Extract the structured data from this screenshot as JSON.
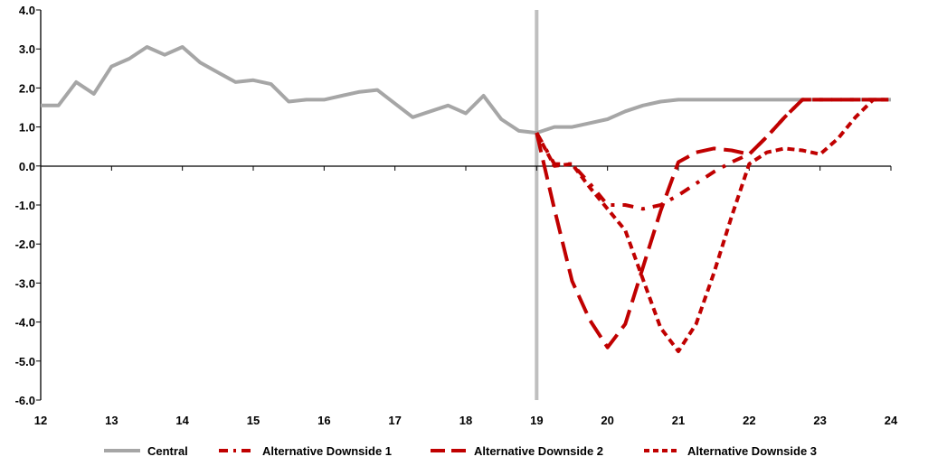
{
  "chart_data": {
    "type": "line",
    "x_ticks": [
      "12",
      "13",
      "14",
      "15",
      "16",
      "17",
      "18",
      "19",
      "20",
      "21",
      "22",
      "23",
      "24"
    ],
    "y_ticks": [
      "4.0",
      "3.0",
      "2.0",
      "1.0",
      "0.0",
      "-1.0",
      "-2.0",
      "-3.0",
      "-4.0",
      "-5.0",
      "-6.0"
    ],
    "xlim": [
      12,
      24
    ],
    "ylim": [
      -6,
      4
    ],
    "vertical_marker_x": 19,
    "colors": {
      "central": "#a6a6a6",
      "downside": "#c00000",
      "marker": "#bfbfbf",
      "axis": "#000000"
    },
    "series": [
      {
        "name": "Central",
        "style": "solid",
        "x": [
          12,
          12.25,
          12.5,
          12.75,
          13,
          13.25,
          13.5,
          13.75,
          14,
          14.25,
          14.5,
          14.75,
          15,
          15.25,
          15.5,
          15.75,
          16,
          16.25,
          16.5,
          16.75,
          17,
          17.25,
          17.5,
          17.75,
          18,
          18.25,
          18.5,
          18.75,
          19,
          19.25,
          19.5,
          19.75,
          20,
          20.25,
          20.5,
          20.75,
          21,
          21.25,
          21.5,
          21.75,
          22,
          22.25,
          22.5,
          22.75,
          23,
          23.25,
          23.5,
          23.75,
          24
        ],
        "y": [
          1.55,
          1.55,
          2.15,
          1.85,
          2.55,
          2.75,
          3.05,
          2.85,
          3.05,
          2.65,
          2.4,
          2.15,
          2.2,
          2.1,
          1.65,
          1.7,
          1.7,
          1.8,
          1.9,
          1.95,
          1.6,
          1.25,
          1.4,
          1.55,
          1.35,
          1.8,
          1.2,
          0.9,
          0.85,
          1.0,
          1.0,
          1.1,
          1.2,
          1.4,
          1.55,
          1.65,
          1.7,
          1.7,
          1.7,
          1.7,
          1.7,
          1.7,
          1.7,
          1.7,
          1.7,
          1.7,
          1.7,
          1.7,
          1.7
        ]
      },
      {
        "name": "Alternative Downside 1",
        "style": "dash-dot",
        "x": [
          19,
          19.25,
          19.5,
          19.75,
          20,
          20.25,
          20.5,
          20.75,
          21,
          21.25,
          21.5,
          21.75,
          22,
          22.25,
          22.5,
          22.75,
          23,
          23.25,
          23.5,
          23.75,
          24
        ],
        "y": [
          0.85,
          0.05,
          0.05,
          -0.45,
          -1.0,
          -1.0,
          -1.1,
          -1.0,
          -0.75,
          -0.45,
          -0.15,
          0.1,
          0.3,
          0.75,
          1.25,
          1.7,
          1.7,
          1.7,
          1.7,
          1.7,
          1.7
        ]
      },
      {
        "name": "Alternative Downside 2",
        "style": "long-dash",
        "x": [
          19,
          19.25,
          19.5,
          19.75,
          20,
          20.25,
          20.5,
          20.75,
          21,
          21.25,
          21.5,
          21.75,
          22,
          22.25,
          22.5,
          22.75,
          23,
          23.25,
          23.5,
          23.75,
          24
        ],
        "y": [
          0.85,
          -1.1,
          -2.95,
          -3.95,
          -4.65,
          -4.05,
          -2.6,
          -1.15,
          0.1,
          0.35,
          0.45,
          0.4,
          0.3,
          0.75,
          1.25,
          1.7,
          1.7,
          1.7,
          1.7,
          1.7,
          1.7
        ]
      },
      {
        "name": "Alternative Downside 3",
        "style": "short-dash",
        "x": [
          19,
          19.25,
          19.5,
          19.75,
          20,
          20.25,
          20.5,
          20.75,
          21,
          21.25,
          21.5,
          21.75,
          22,
          22.25,
          22.5,
          22.75,
          23,
          23.25,
          23.5,
          23.75,
          24
        ],
        "y": [
          0.85,
          0.0,
          0.05,
          -0.55,
          -1.1,
          -1.65,
          -2.9,
          -4.15,
          -4.75,
          -4.05,
          -2.75,
          -1.3,
          0.05,
          0.35,
          0.45,
          0.4,
          0.3,
          0.7,
          1.25,
          1.7,
          1.7
        ]
      }
    ],
    "legend": [
      "Central",
      "Alternative Downside 1",
      "Alternative Downside 2",
      "Alternative Downside 3"
    ]
  }
}
